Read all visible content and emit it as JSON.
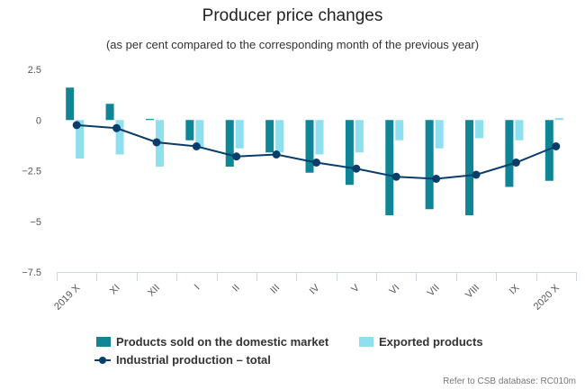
{
  "chart_data": {
    "type": "bar",
    "title": "Producer price changes",
    "subtitle": "(as per cent compared to the corresponding month of the previous year)",
    "categories": [
      "2019 X",
      "XI",
      "XII",
      "I",
      "II",
      "III",
      "IV",
      "V",
      "VI",
      "VII",
      "VIII",
      "IX",
      "2020 X"
    ],
    "ylim": [
      -7.5,
      2.5
    ],
    "yticks": [
      "2.5",
      "0",
      "−2.5",
      "−5",
      "−7.5"
    ],
    "ytick_values": [
      2.5,
      0,
      -2.5,
      -5,
      -7.5
    ],
    "grid": false,
    "legend_position": "bottom",
    "series": [
      {
        "name": "Products sold on the domestic market",
        "kind": "bar",
        "color": "#0f8595",
        "values": [
          1.6,
          0.8,
          0.05,
          -1.0,
          -2.3,
          -1.6,
          -2.6,
          -3.2,
          -4.7,
          -4.4,
          -4.7,
          -3.3,
          -3.0
        ]
      },
      {
        "name": "Exported products",
        "kind": "bar",
        "color": "#8ee0ef",
        "values": [
          -1.9,
          -1.7,
          -2.3,
          -1.4,
          -1.4,
          -1.6,
          -1.7,
          -1.6,
          -1.0,
          -1.4,
          -0.9,
          -1.0,
          0.1
        ]
      },
      {
        "name": "Industrial production – total",
        "kind": "line",
        "color": "#0b3d6b",
        "values": [
          -0.25,
          -0.4,
          -1.1,
          -1.3,
          -1.8,
          -1.7,
          -2.1,
          -2.4,
          -2.8,
          -2.9,
          -2.7,
          -2.1,
          -1.3
        ]
      }
    ]
  },
  "credits": "Refer to CSB database: RC010m"
}
